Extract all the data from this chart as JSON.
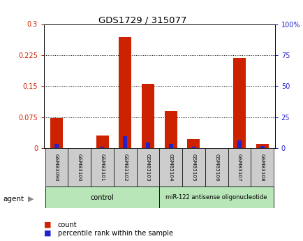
{
  "title": "GDS1729 / 315077",
  "samples": [
    "GSM83090",
    "GSM83100",
    "GSM83101",
    "GSM83102",
    "GSM83103",
    "GSM83104",
    "GSM83105",
    "GSM83106",
    "GSM83107",
    "GSM83108"
  ],
  "count_values": [
    0.073,
    0.0,
    0.03,
    0.268,
    0.155,
    0.09,
    0.022,
    0.0,
    0.218,
    0.01
  ],
  "percentile_values": [
    3.5,
    0.3,
    1.5,
    9.5,
    4.5,
    3.5,
    1.5,
    0.3,
    6.5,
    2.0
  ],
  "count_color": "#cc2200",
  "percentile_color": "#2222cc",
  "ylim_left": [
    0,
    0.3
  ],
  "ylim_right": [
    0,
    100
  ],
  "yticks_left": [
    0,
    0.075,
    0.15,
    0.225,
    0.3
  ],
  "yticks_right": [
    0,
    25,
    50,
    75,
    100
  ],
  "ytick_labels_left": [
    "0",
    "0.075",
    "0.15",
    "0.225",
    "0.3"
  ],
  "ytick_labels_right": [
    "0",
    "25",
    "50",
    "75",
    "100%"
  ],
  "agent_label": "agent",
  "group1_label": "control",
  "group2_label": "miR-122 antisense oligonucleotide",
  "group1_color": "#b8e6b8",
  "group2_color": "#b8e6b8",
  "group1_samples": 5,
  "group2_samples": 5,
  "legend_count": "count",
  "legend_percentile": "percentile rank within the sample",
  "label_color_left": "#cc2200",
  "label_color_right": "#2222cc",
  "sample_bg": "#cccccc"
}
